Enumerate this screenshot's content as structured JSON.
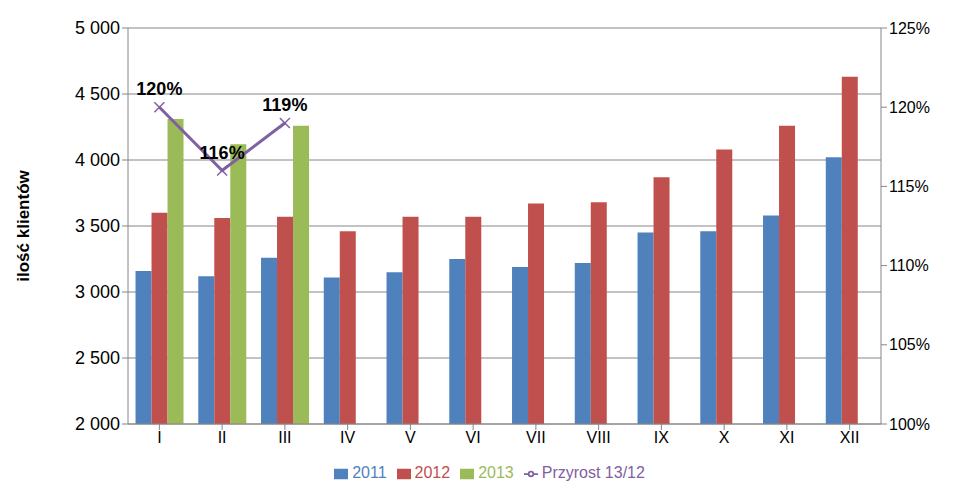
{
  "chart_data": {
    "type": "bar",
    "y_label": "ilość klientów",
    "categories": [
      "I",
      "II",
      "III",
      "IV",
      "V",
      "VI",
      "VII",
      "VIII",
      "IX",
      "X",
      "XI",
      "XII"
    ],
    "series": [
      {
        "name": "2011",
        "color": "#4f81bd",
        "values": [
          3160,
          3120,
          3260,
          3110,
          3150,
          3250,
          3190,
          3220,
          3450,
          3460,
          3580,
          4020
        ]
      },
      {
        "name": "2012",
        "color": "#c0504d",
        "values": [
          3600,
          3560,
          3570,
          3460,
          3570,
          3570,
          3670,
          3680,
          3870,
          4080,
          4260,
          4630
        ]
      },
      {
        "name": "2013",
        "color": "#9bbb59",
        "values": [
          4310,
          4120,
          4260,
          null,
          null,
          null,
          null,
          null,
          null,
          null,
          null,
          null
        ]
      },
      {
        "name": "Przyrost 13/12",
        "type": "line",
        "axis": "y2",
        "color": "#7f60a0",
        "marker": "x",
        "data_labels": true,
        "values": [
          120,
          116,
          119,
          null,
          null,
          null,
          null,
          null,
          null,
          null,
          null,
          null
        ],
        "value_labels": [
          "120%",
          "116%",
          "119%",
          null,
          null,
          null,
          null,
          null,
          null,
          null,
          null,
          null
        ]
      }
    ],
    "ylim": [
      2000,
      5000
    ],
    "yticks": [
      {
        "value": 2000,
        "label": "2 000"
      },
      {
        "value": 2500,
        "label": "2 500"
      },
      {
        "value": 3000,
        "label": "3 000"
      },
      {
        "value": 3500,
        "label": "3 500"
      },
      {
        "value": 4000,
        "label": "4 000"
      },
      {
        "value": 4500,
        "label": "4 500"
      },
      {
        "value": 5000,
        "label": "5 000"
      }
    ],
    "y2lim": [
      100,
      125
    ],
    "y2ticks": [
      {
        "value": 100,
        "label": "100%"
      },
      {
        "value": 105,
        "label": "105%"
      },
      {
        "value": 110,
        "label": "110%"
      },
      {
        "value": 115,
        "label": "115%"
      },
      {
        "value": 120,
        "label": "120%"
      },
      {
        "value": 125,
        "label": "125%"
      }
    ],
    "grid": true,
    "legend": "bottom"
  }
}
